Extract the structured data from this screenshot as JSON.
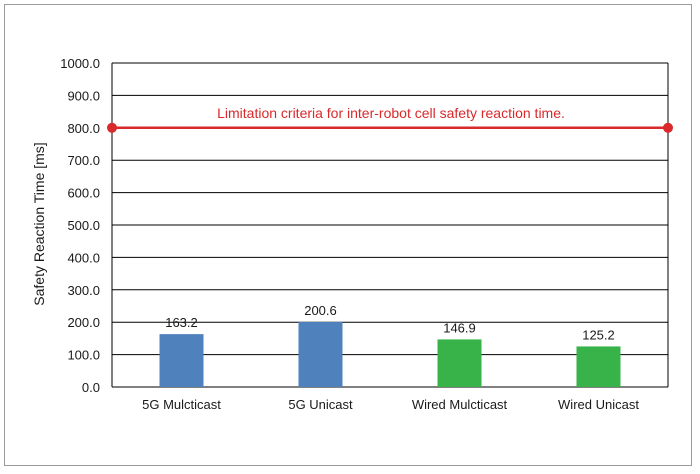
{
  "chart_data": {
    "type": "bar",
    "categories": [
      "5G Mulcticast",
      "5G Unicast",
      "Wired Mulcticast",
      "Wired Unicast"
    ],
    "values": [
      163.2,
      200.6,
      146.9,
      125.2
    ],
    "data_labels": [
      "163.2",
      "200.6",
      "146.9",
      "125.2"
    ],
    "bar_colors": [
      "#4f81bd",
      "#4f81bd",
      "#37b34a",
      "#37b34a"
    ],
    "ylabel": "Safety Reaction Time [ms]",
    "ylim": [
      0,
      1000
    ],
    "yticks": [
      0,
      100,
      200,
      300,
      400,
      500,
      600,
      700,
      800,
      900,
      1000
    ],
    "ytick_labels": [
      "0.0",
      "100.0",
      "200.0",
      "300.0",
      "400.0",
      "500.0",
      "600.0",
      "700.0",
      "800.0",
      "900.0",
      "1000.0"
    ],
    "grid": true,
    "threshold": {
      "value": 800,
      "label": "Limitation criteria for inter-robot cell safety reaction time.",
      "color": "#d9292b"
    }
  }
}
